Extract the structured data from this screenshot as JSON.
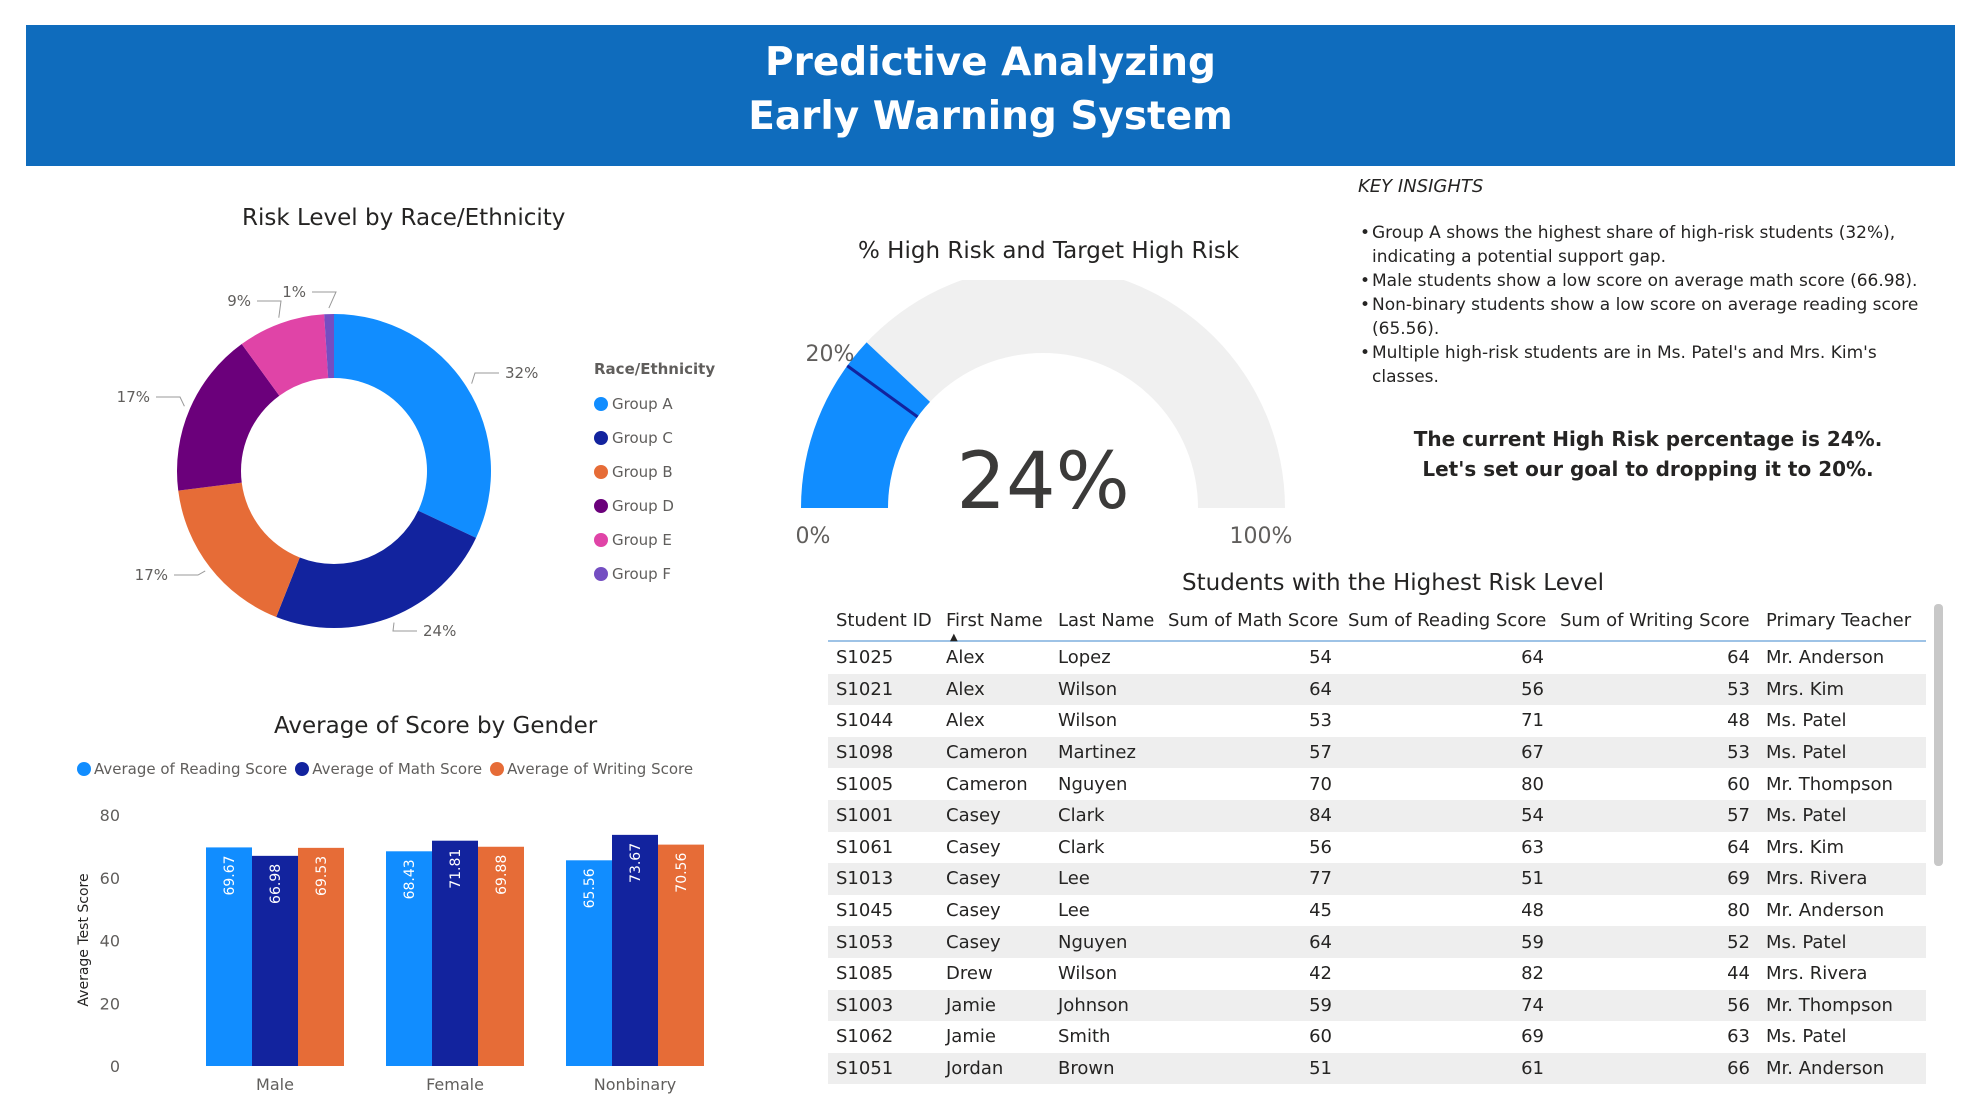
{
  "header": {
    "line1": "Predictive Analyzing",
    "line2": "Early Warning System"
  },
  "colors": {
    "group_a": "#118dff",
    "group_c": "#12239e",
    "group_b": "#e66c37",
    "group_d": "#6b007b",
    "group_e": "#e044a7",
    "group_f": "#744ec2",
    "header_bg": "#0f6cbd",
    "gauge_track": "#f0f0f0"
  },
  "chart_data": [
    {
      "type": "pie",
      "title": "Risk Level by Race/Ethnicity",
      "legend_title": "Race/Ethnicity",
      "legend_position": "right",
      "categories": [
        "Group A",
        "Group C",
        "Group B",
        "Group D",
        "Group E",
        "Group F"
      ],
      "values": [
        32,
        24,
        17,
        17,
        9,
        1
      ],
      "labels": [
        "32%",
        "24%",
        "17%",
        "17%",
        "9%",
        "1%"
      ]
    },
    {
      "type": "gauge",
      "title": "% High Risk and Target High Risk",
      "value": 24,
      "value_label": "24%",
      "target": 20,
      "target_label": "20%",
      "min_label": "0%",
      "max_label": "100%",
      "range": [
        0,
        100
      ]
    },
    {
      "type": "bar",
      "title": "Average of Score by Gender",
      "categories": [
        "Male",
        "Female",
        "Nonbinary"
      ],
      "ylabel": "Average Test Score",
      "ylim": [
        0,
        80
      ],
      "yticks": [
        0,
        20,
        40,
        60,
        80
      ],
      "legend_position": "top-left",
      "series": [
        {
          "name": "Average of Reading Score",
          "values": [
            69.67,
            68.43,
            65.56
          ]
        },
        {
          "name": "Average of Math Score",
          "values": [
            66.98,
            71.81,
            73.67
          ]
        },
        {
          "name": "Average of Writing Score",
          "values": [
            69.53,
            69.88,
            70.56
          ]
        }
      ]
    }
  ],
  "insights": {
    "title": "KEY INSIGHTS",
    "items": [
      "Group A shows the highest share of high-risk students (32%), indicating a potential support gap.",
      "Male students show a low score on average math score (66.98).",
      "Non-binary students show a low score on average reading score (65.56).",
      "Multiple high-risk students are in Ms. Patel's and Mrs. Kim's classes."
    ],
    "callout_line1": "The current High Risk percentage is 24%.",
    "callout_line2": "Let's set our goal to dropping it to 20%."
  },
  "table": {
    "title": "Students with the Highest Risk Level",
    "columns": [
      "Student ID",
      "First Name",
      "Last Name",
      "Sum of Math Score",
      "Sum of Reading Score",
      "Sum of Writing Score",
      "Primary Teacher"
    ],
    "rows": [
      [
        "S1025",
        "Alex",
        "Lopez",
        "54",
        "64",
        "64",
        "Mr. Anderson"
      ],
      [
        "S1021",
        "Alex",
        "Wilson",
        "64",
        "56",
        "53",
        "Mrs. Kim"
      ],
      [
        "S1044",
        "Alex",
        "Wilson",
        "53",
        "71",
        "48",
        "Ms. Patel"
      ],
      [
        "S1098",
        "Cameron",
        "Martinez",
        "57",
        "67",
        "53",
        "Ms. Patel"
      ],
      [
        "S1005",
        "Cameron",
        "Nguyen",
        "70",
        "80",
        "60",
        "Mr. Thompson"
      ],
      [
        "S1001",
        "Casey",
        "Clark",
        "84",
        "54",
        "57",
        "Ms. Patel"
      ],
      [
        "S1061",
        "Casey",
        "Clark",
        "56",
        "63",
        "64",
        "Mrs. Kim"
      ],
      [
        "S1013",
        "Casey",
        "Lee",
        "77",
        "51",
        "69",
        "Mrs. Rivera"
      ],
      [
        "S1045",
        "Casey",
        "Lee",
        "45",
        "48",
        "80",
        "Mr. Anderson"
      ],
      [
        "S1053",
        "Casey",
        "Nguyen",
        "64",
        "59",
        "52",
        "Ms. Patel"
      ],
      [
        "S1085",
        "Drew",
        "Wilson",
        "42",
        "82",
        "44",
        "Mrs. Rivera"
      ],
      [
        "S1003",
        "Jamie",
        "Johnson",
        "59",
        "74",
        "56",
        "Mr. Thompson"
      ],
      [
        "S1062",
        "Jamie",
        "Smith",
        "60",
        "69",
        "63",
        "Ms. Patel"
      ],
      [
        "S1051",
        "Jordan",
        "Brown",
        "51",
        "61",
        "66",
        "Mr. Anderson"
      ]
    ]
  }
}
